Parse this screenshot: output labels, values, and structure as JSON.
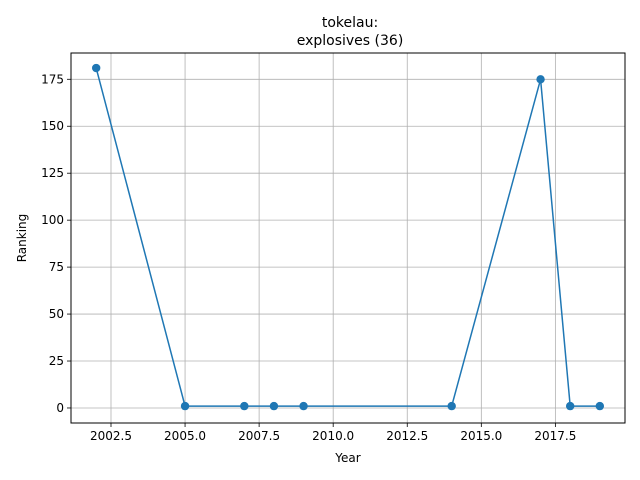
{
  "chart_data": {
    "type": "line",
    "title_lines": [
      "tokelau:",
      "explosives (36)"
    ],
    "xlabel": "Year",
    "ylabel": "Ranking",
    "xlim": [
      2001.15,
      2019.85
    ],
    "ylim": [
      -8,
      189
    ],
    "xticks": [
      2002.5,
      2005.0,
      2007.5,
      2010.0,
      2012.5,
      2015.0,
      2017.5
    ],
    "xtick_labels": [
      "2002.5",
      "2005.0",
      "2007.5",
      "2010.0",
      "2012.5",
      "2015.0",
      "2017.5"
    ],
    "yticks": [
      0,
      25,
      50,
      75,
      100,
      125,
      150,
      175
    ],
    "ytick_labels": [
      "0",
      "25",
      "50",
      "75",
      "100",
      "125",
      "150",
      "175"
    ],
    "grid": true,
    "series": [
      {
        "color": "#1f77b4",
        "marker": "circle",
        "x": [
          2002,
          2005,
          2007,
          2008,
          2009,
          2014,
          2017,
          2018,
          2019
        ],
        "y": [
          181,
          1,
          1,
          1,
          1,
          1,
          175,
          1,
          1
        ]
      }
    ]
  }
}
